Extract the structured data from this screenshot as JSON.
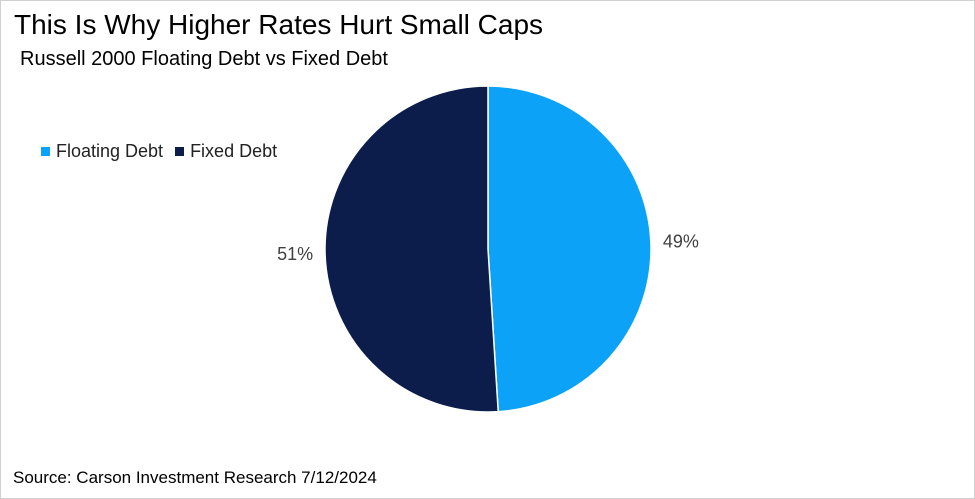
{
  "title": "This Is Why Higher Rates Hurt Small Caps",
  "subtitle": "Russell 2000 Floating Debt vs Fixed Debt",
  "source": "Source: Carson Investment Research 7/12/2024",
  "colors": {
    "floating": "#0ba2f7",
    "fixed": "#0c1d4c",
    "separator": "#ffffff"
  },
  "chart_data": {
    "type": "pie",
    "title": "This Is Why Higher Rates Hurt Small Caps",
    "subtitle": "Russell 2000 Floating Debt vs Fixed Debt",
    "legend_position": "top-left",
    "slices": [
      {
        "name": "Floating Debt",
        "value": 49,
        "label": "49%",
        "color": "#0ba2f7"
      },
      {
        "name": "Fixed Debt",
        "value": 51,
        "label": "51%",
        "color": "#0c1d4c"
      }
    ],
    "legend": [
      "Floating Debt",
      "Fixed Debt"
    ]
  }
}
